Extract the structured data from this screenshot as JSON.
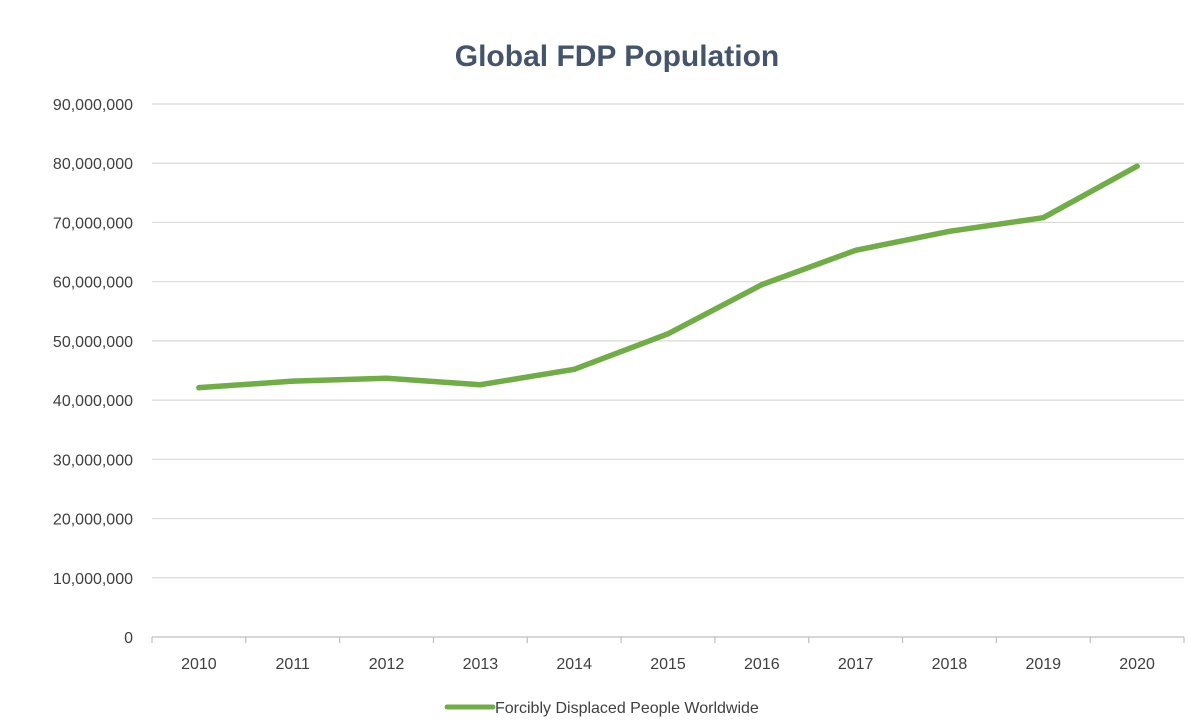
{
  "chart_data": {
    "type": "line",
    "title": "Global FDP Population",
    "xlabel": "",
    "ylabel": "",
    "categories": [
      "2010",
      "2011",
      "2012",
      "2013",
      "2014",
      "2015",
      "2016",
      "2017",
      "2018",
      "2019",
      "2020"
    ],
    "series": [
      {
        "name": "Forcibly Displaced People Worldwide",
        "values": [
          42100000,
          43200000,
          43700000,
          42600000,
          45200000,
          51200000,
          59500000,
          65300000,
          68500000,
          70800000,
          79500000
        ],
        "color": "#70AD47"
      }
    ],
    "ylim": [
      0,
      90000000
    ],
    "y_ticks": [
      0,
      10000000,
      20000000,
      30000000,
      40000000,
      50000000,
      60000000,
      70000000,
      80000000,
      90000000
    ],
    "y_tick_labels": [
      "0",
      "10,000,000",
      "20,000,000",
      "30,000,000",
      "40,000,000",
      "50,000,000",
      "60,000,000",
      "70,000,000",
      "80,000,000",
      "90,000,000"
    ],
    "grid": true,
    "legend_position": "bottom",
    "colors": {
      "title": "#44546A",
      "tick_text": "#404040",
      "gridline": "#D9D9D9",
      "axis": "#BFBFBF"
    }
  }
}
